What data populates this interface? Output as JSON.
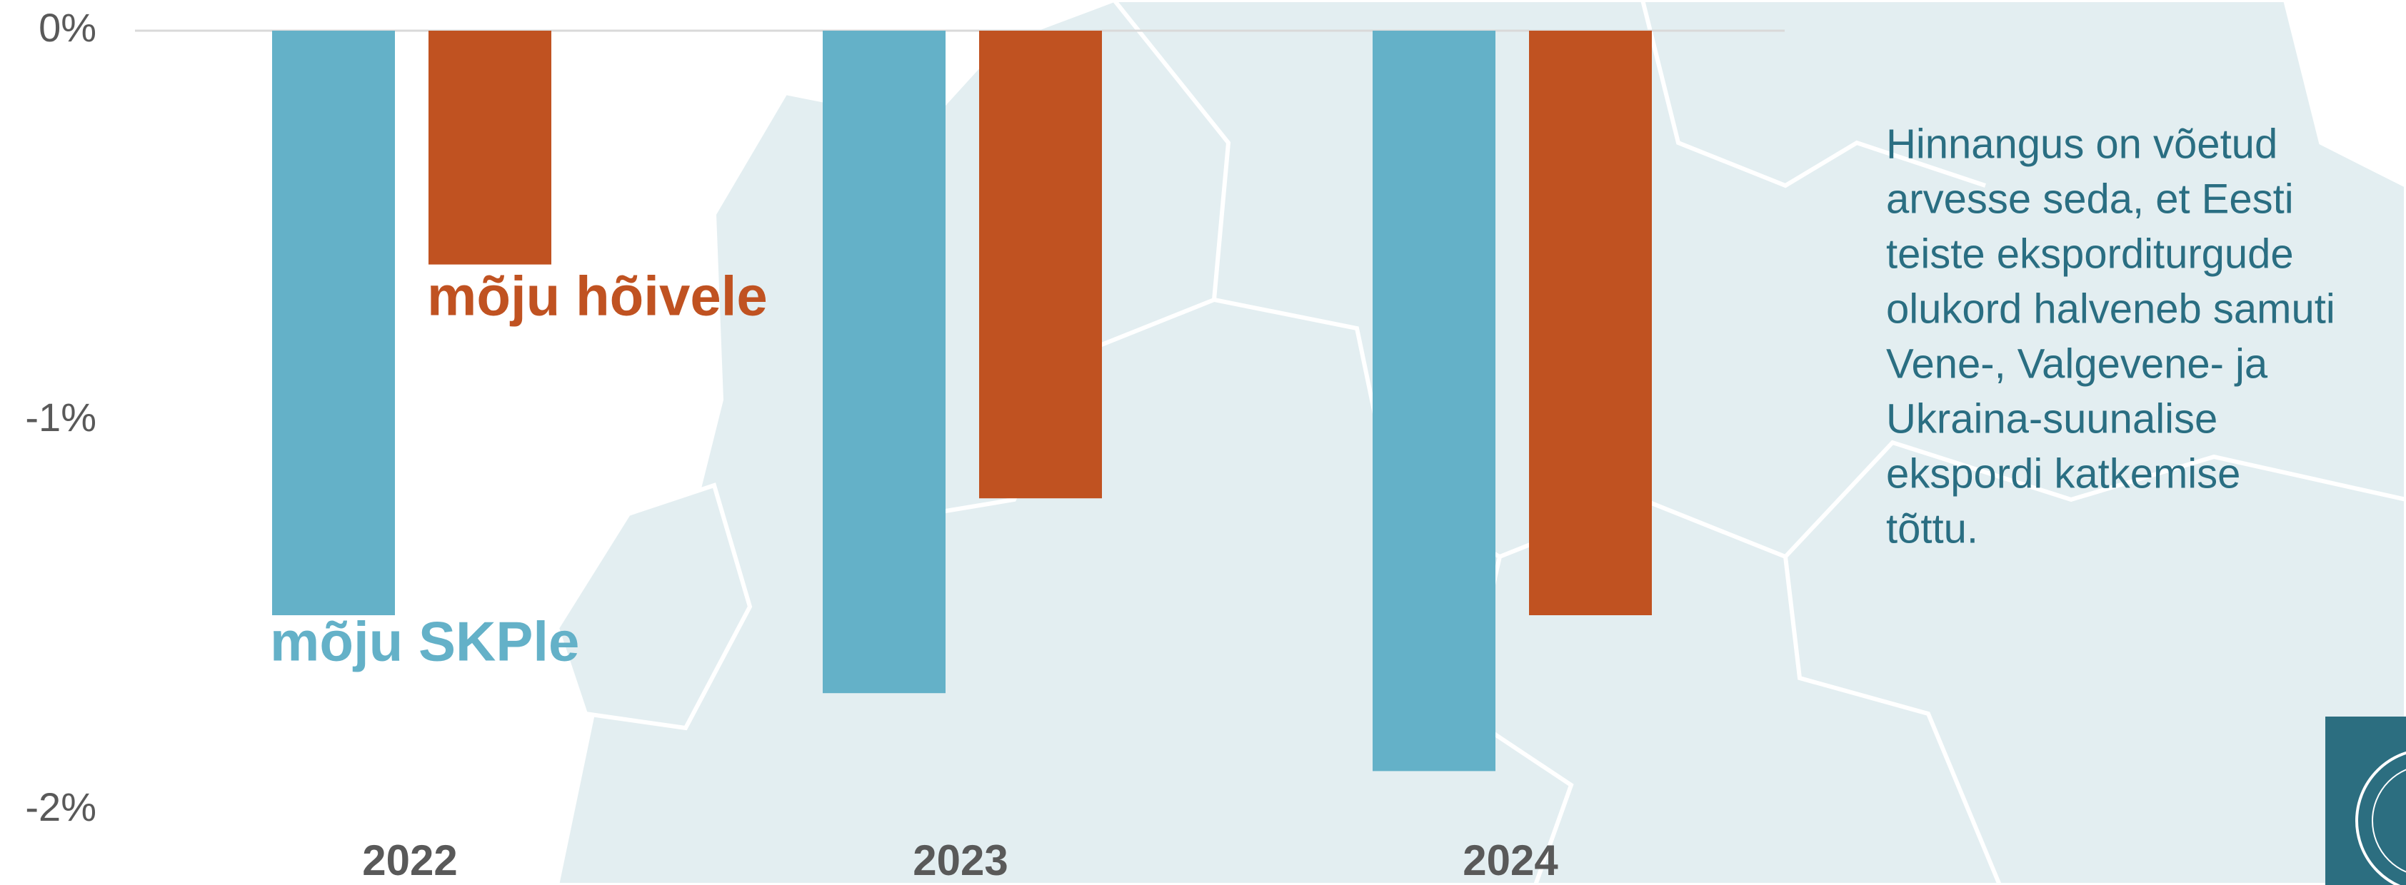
{
  "chart_data": {
    "type": "bar",
    "categories": [
      "2022",
      "2023",
      "2024"
    ],
    "series": [
      {
        "name": "mõju SKPle",
        "color": "#64b1c8",
        "values": [
          -1.5,
          -1.7,
          -1.9
        ]
      },
      {
        "name": "mõju hõivele",
        "color": "#c05221",
        "values": [
          -0.6,
          -1.2,
          -1.5
        ]
      }
    ],
    "ylim": [
      -2,
      0
    ],
    "yticks": [
      {
        "value": 0,
        "label": "0%"
      },
      {
        "value": -1,
        "label": "-1%"
      },
      {
        "value": -2,
        "label": "-2%"
      }
    ],
    "annotation_lines": [
      "Hinnangus on võetud",
      "arvesse seda, et Eesti",
      "teiste eksporditurgude",
      "olukord halveneb samuti",
      "Vene-, Valgevene- ja",
      "Ukraina-suunalise",
      "ekspordi katkemise",
      "tõttu."
    ]
  }
}
